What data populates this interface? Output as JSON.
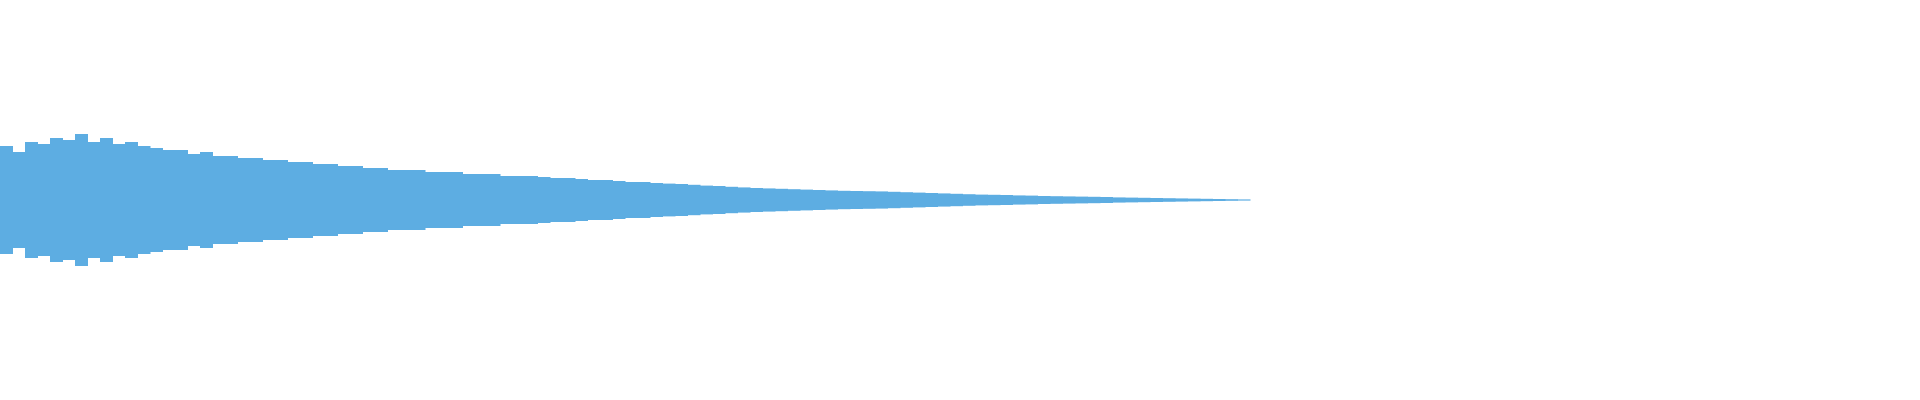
{
  "waveform": {
    "color": "#5dade2",
    "peaks": [
      0.27,
      0.24,
      0.29,
      0.28,
      0.31,
      0.3,
      0.33,
      0.29,
      0.31,
      0.28,
      0.29,
      0.27,
      0.26,
      0.25,
      0.25,
      0.23,
      0.24,
      0.22,
      0.22,
      0.21,
      0.21,
      0.2,
      0.2,
      0.19,
      0.19,
      0.18,
      0.18,
      0.17,
      0.17,
      0.16,
      0.16,
      0.15,
      0.15,
      0.15,
      0.14,
      0.14,
      0.14,
      0.13,
      0.13,
      0.13,
      0.12,
      0.12,
      0.12,
      0.115,
      0.11,
      0.11,
      0.105,
      0.1,
      0.1,
      0.095,
      0.09,
      0.09,
      0.085,
      0.082,
      0.08,
      0.076,
      0.072,
      0.07,
      0.066,
      0.063,
      0.06,
      0.058,
      0.056,
      0.054,
      0.052,
      0.05,
      0.048,
      0.046,
      0.045,
      0.044,
      0.043,
      0.041,
      0.039,
      0.037,
      0.035,
      0.033,
      0.031,
      0.029,
      0.027,
      0.026,
      0.025,
      0.023,
      0.022,
      0.02,
      0.019,
      0.018,
      0.017,
      0.016,
      0.015,
      0.013,
      0.012,
      0.011,
      0.01,
      0.009,
      0.008,
      0.007,
      0.006,
      0.005,
      0.004,
      0.003
    ]
  }
}
